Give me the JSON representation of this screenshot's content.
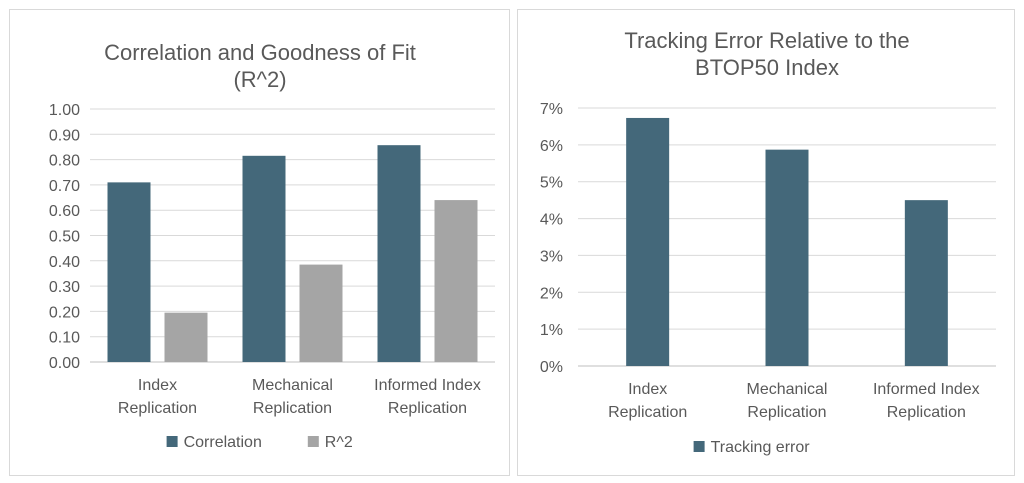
{
  "chart_data": [
    {
      "type": "bar",
      "title_lines": [
        "Correlation and Goodness of Fit",
        "(R^2)"
      ],
      "categories": [
        [
          "Index",
          "Replication"
        ],
        [
          "Mechanical",
          "Replication"
        ],
        [
          "Informed Index",
          "Replication"
        ]
      ],
      "series": [
        {
          "name": "Correlation",
          "color": "#44687a",
          "values": [
            0.71,
            0.815,
            0.857
          ]
        },
        {
          "name": "R^2",
          "color": "#a5a5a5",
          "values": [
            0.195,
            0.385,
            0.64
          ]
        }
      ],
      "ylim": [
        0,
        1
      ],
      "yticks": [
        "0.00",
        "0.10",
        "0.20",
        "0.30",
        "0.40",
        "0.50",
        "0.60",
        "0.70",
        "0.80",
        "0.90",
        "1.00"
      ],
      "grid": true,
      "legend": "bottom"
    },
    {
      "type": "bar",
      "title_lines": [
        "Tracking Error Relative to the",
        "BTOP50 Index"
      ],
      "categories": [
        [
          "Index",
          "Replication"
        ],
        [
          "Mechanical",
          "Replication"
        ],
        [
          "Informed Index",
          "Replication"
        ]
      ],
      "series": [
        {
          "name": "Tracking error",
          "color": "#44687a",
          "values": [
            0.0673,
            0.0587,
            0.045
          ]
        }
      ],
      "ylim": [
        0,
        0.07
      ],
      "yticks": [
        "0%",
        "1%",
        "2%",
        "3%",
        "4%",
        "5%",
        "6%",
        "7%"
      ],
      "grid": true,
      "legend": "bottom"
    }
  ]
}
